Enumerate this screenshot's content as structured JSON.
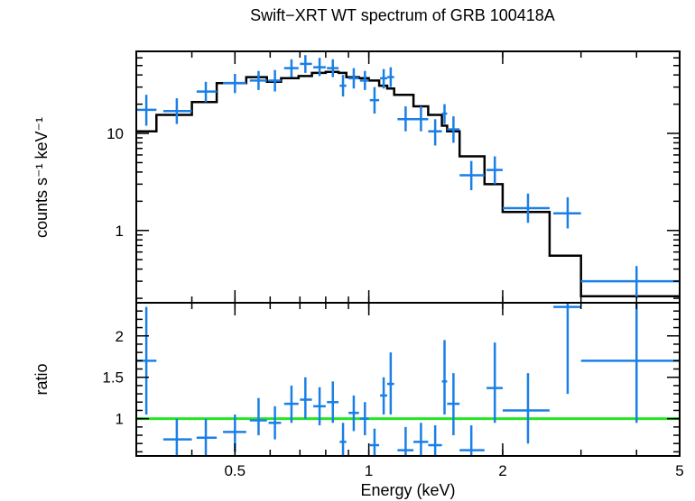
{
  "chart_data": [
    {
      "type": "scatter",
      "panel": "spectrum",
      "title": "Swift−XRT WT spectrum of GRB 100418A",
      "ylabel": "counts s⁻¹ keV⁻¹",
      "xlabel": "Energy (keV)",
      "xscale": "log",
      "yscale": "log",
      "xlim": [
        0.3,
        5
      ],
      "ylim": [
        0.18,
        70
      ],
      "yticks": [
        {
          "value": 1,
          "label": "1"
        },
        {
          "value": 10,
          "label": "10"
        }
      ],
      "series": [
        {
          "name": "data",
          "color": "#1a7fe6",
          "points": [
            {
              "x": 0.316,
              "xlo": 0.3,
              "xhi": 0.333,
              "y": 17.5,
              "ylo": 12.0,
              "yhi": 25.0
            },
            {
              "x": 0.37,
              "xlo": 0.345,
              "xhi": 0.4,
              "y": 17.0,
              "ylo": 12.5,
              "yhi": 23.0
            },
            {
              "x": 0.43,
              "xlo": 0.41,
              "xhi": 0.455,
              "y": 27.0,
              "ylo": 21.0,
              "yhi": 34.0
            },
            {
              "x": 0.5,
              "xlo": 0.47,
              "xhi": 0.53,
              "y": 33.0,
              "ylo": 26.0,
              "yhi": 41.0
            },
            {
              "x": 0.565,
              "xlo": 0.54,
              "xhi": 0.59,
              "y": 35.0,
              "ylo": 28.0,
              "yhi": 44.0
            },
            {
              "x": 0.615,
              "xlo": 0.595,
              "xhi": 0.635,
              "y": 35.0,
              "ylo": 27.0,
              "yhi": 45.0
            },
            {
              "x": 0.67,
              "xlo": 0.645,
              "xhi": 0.695,
              "y": 47.0,
              "ylo": 38.0,
              "yhi": 58.0
            },
            {
              "x": 0.72,
              "xlo": 0.7,
              "xhi": 0.745,
              "y": 52.0,
              "ylo": 42.0,
              "yhi": 64.0
            },
            {
              "x": 0.775,
              "xlo": 0.75,
              "xhi": 0.8,
              "y": 48.0,
              "ylo": 39.0,
              "yhi": 60.0
            },
            {
              "x": 0.83,
              "xlo": 0.805,
              "xhi": 0.855,
              "y": 47.0,
              "ylo": 38.0,
              "yhi": 58.0
            },
            {
              "x": 0.875,
              "xlo": 0.86,
              "xhi": 0.89,
              "y": 31.0,
              "ylo": 24.0,
              "yhi": 40.0
            },
            {
              "x": 0.925,
              "xlo": 0.9,
              "xhi": 0.95,
              "y": 37.0,
              "ylo": 29.0,
              "yhi": 47.0
            },
            {
              "x": 0.98,
              "xlo": 0.955,
              "xhi": 1.0,
              "y": 35.0,
              "ylo": 28.0,
              "yhi": 44.0
            },
            {
              "x": 1.03,
              "xlo": 1.005,
              "xhi": 1.055,
              "y": 22.0,
              "ylo": 16.0,
              "yhi": 30.0
            },
            {
              "x": 1.08,
              "xlo": 1.06,
              "xhi": 1.1,
              "y": 37.0,
              "ylo": 29.0,
              "yhi": 46.0
            },
            {
              "x": 1.12,
              "xlo": 1.1,
              "xhi": 1.14,
              "y": 38.0,
              "ylo": 30.0,
              "yhi": 48.0
            },
            {
              "x": 1.21,
              "xlo": 1.16,
              "xhi": 1.26,
              "y": 14.0,
              "ylo": 10.5,
              "yhi": 19.0
            },
            {
              "x": 1.31,
              "xlo": 1.26,
              "xhi": 1.36,
              "y": 14.0,
              "ylo": 10.5,
              "yhi": 19.0
            },
            {
              "x": 1.41,
              "xlo": 1.36,
              "xhi": 1.46,
              "y": 10.5,
              "ylo": 7.5,
              "yhi": 14.0
            },
            {
              "x": 1.48,
              "xlo": 1.46,
              "xhi": 1.5,
              "y": 16.0,
              "ylo": 12.5,
              "yhi": 20.0
            },
            {
              "x": 1.55,
              "xlo": 1.5,
              "xhi": 1.6,
              "y": 11.0,
              "ylo": 8.0,
              "yhi": 15.0
            },
            {
              "x": 1.7,
              "xlo": 1.6,
              "xhi": 1.82,
              "y": 3.7,
              "ylo": 2.6,
              "yhi": 5.2
            },
            {
              "x": 1.92,
              "xlo": 1.84,
              "xhi": 2.0,
              "y": 4.2,
              "ylo": 3.0,
              "yhi": 5.8
            },
            {
              "x": 2.28,
              "xlo": 2.0,
              "xhi": 2.55,
              "y": 1.7,
              "ylo": 1.2,
              "yhi": 2.4
            },
            {
              "x": 2.8,
              "xlo": 2.6,
              "xhi": 3.0,
              "y": 1.5,
              "ylo": 1.05,
              "yhi": 2.2
            },
            {
              "x": 4.0,
              "xlo": 3.0,
              "xhi": 5.0,
              "y": 0.3,
              "ylo": 0.2,
              "yhi": 0.43
            }
          ]
        },
        {
          "name": "model",
          "color": "#000000",
          "step_edges": [
            0.3,
            0.333,
            0.4,
            0.455,
            0.53,
            0.59,
            0.635,
            0.695,
            0.745,
            0.8,
            0.855,
            0.89,
            0.95,
            1.0,
            1.055,
            1.1,
            1.14,
            1.26,
            1.36,
            1.46,
            1.5,
            1.6,
            1.82,
            2.0,
            2.55,
            3.0,
            5.0
          ],
          "step_values": [
            10.5,
            15.5,
            21.0,
            33.0,
            38.0,
            34.0,
            37.0,
            39.0,
            42.0,
            43.0,
            42.0,
            38.0,
            37.0,
            35.0,
            31.0,
            29.0,
            25.0,
            19.0,
            15.5,
            12.0,
            10.5,
            5.8,
            3.0,
            1.55,
            0.55,
            0.21
          ]
        }
      ]
    },
    {
      "type": "scatter",
      "panel": "ratio",
      "ylabel": "ratio",
      "xlabel": "Energy (keV)",
      "xscale": "log",
      "xlim": [
        0.3,
        5
      ],
      "ylim": [
        0.55,
        2.4
      ],
      "xticks": [
        {
          "value": 0.5,
          "label": "0.5"
        },
        {
          "value": 1,
          "label": "1"
        },
        {
          "value": 2,
          "label": "2"
        },
        {
          "value": 5,
          "label": "5"
        }
      ],
      "yticks": [
        {
          "value": 1,
          "label": "1"
        },
        {
          "value": 1.5,
          "label": "1.5"
        },
        {
          "value": 2,
          "label": "2"
        }
      ],
      "reference_line": {
        "y": 1,
        "color": "#22e622"
      },
      "series": [
        {
          "name": "ratio",
          "color": "#1a7fe6",
          "points": [
            {
              "x": 0.316,
              "xlo": 0.3,
              "xhi": 0.333,
              "y": 1.7,
              "ylo": 1.05,
              "yhi": 2.35
            },
            {
              "x": 0.37,
              "xlo": 0.345,
              "xhi": 0.4,
              "y": 0.75,
              "ylo": 0.55,
              "yhi": 1.0
            },
            {
              "x": 0.43,
              "xlo": 0.41,
              "xhi": 0.455,
              "y": 0.77,
              "ylo": 0.55,
              "yhi": 1.0
            },
            {
              "x": 0.5,
              "xlo": 0.47,
              "xhi": 0.53,
              "y": 0.84,
              "ylo": 0.6,
              "yhi": 1.05
            },
            {
              "x": 0.565,
              "xlo": 0.54,
              "xhi": 0.59,
              "y": 0.98,
              "ylo": 0.8,
              "yhi": 1.25
            },
            {
              "x": 0.615,
              "xlo": 0.595,
              "xhi": 0.635,
              "y": 0.95,
              "ylo": 0.75,
              "yhi": 1.15
            },
            {
              "x": 0.67,
              "xlo": 0.645,
              "xhi": 0.695,
              "y": 1.18,
              "ylo": 0.95,
              "yhi": 1.4
            },
            {
              "x": 0.72,
              "xlo": 0.7,
              "xhi": 0.745,
              "y": 1.23,
              "ylo": 1.0,
              "yhi": 1.5
            },
            {
              "x": 0.775,
              "xlo": 0.75,
              "xhi": 0.8,
              "y": 1.15,
              "ylo": 0.92,
              "yhi": 1.38
            },
            {
              "x": 0.83,
              "xlo": 0.805,
              "xhi": 0.855,
              "y": 1.2,
              "ylo": 0.95,
              "yhi": 1.45
            },
            {
              "x": 0.875,
              "xlo": 0.86,
              "xhi": 0.89,
              "y": 0.72,
              "ylo": 0.55,
              "yhi": 0.95
            },
            {
              "x": 0.925,
              "xlo": 0.9,
              "xhi": 0.95,
              "y": 1.07,
              "ylo": 0.85,
              "yhi": 1.28
            },
            {
              "x": 0.98,
              "xlo": 0.955,
              "xhi": 1.0,
              "y": 1.0,
              "ylo": 0.8,
              "yhi": 1.2
            },
            {
              "x": 1.03,
              "xlo": 1.005,
              "xhi": 1.055,
              "y": 0.68,
              "ylo": 0.55,
              "yhi": 0.88
            },
            {
              "x": 1.08,
              "xlo": 1.06,
              "xhi": 1.1,
              "y": 1.28,
              "ylo": 1.05,
              "yhi": 1.5
            },
            {
              "x": 1.12,
              "xlo": 1.1,
              "xhi": 1.14,
              "y": 1.42,
              "ylo": 1.05,
              "yhi": 1.8
            },
            {
              "x": 1.21,
              "xlo": 1.16,
              "xhi": 1.26,
              "y": 0.62,
              "ylo": 0.55,
              "yhi": 0.9
            },
            {
              "x": 1.31,
              "xlo": 1.26,
              "xhi": 1.36,
              "y": 0.72,
              "ylo": 0.55,
              "yhi": 0.95
            },
            {
              "x": 1.41,
              "xlo": 1.36,
              "xhi": 1.46,
              "y": 0.68,
              "ylo": 0.55,
              "yhi": 0.92
            },
            {
              "x": 1.48,
              "xlo": 1.46,
              "xhi": 1.5,
              "y": 1.45,
              "ylo": 1.05,
              "yhi": 1.95
            },
            {
              "x": 1.55,
              "xlo": 1.5,
              "xhi": 1.6,
              "y": 1.18,
              "ylo": 0.8,
              "yhi": 1.55
            },
            {
              "x": 1.7,
              "xlo": 1.6,
              "xhi": 1.82,
              "y": 0.62,
              "ylo": 0.55,
              "yhi": 0.92
            },
            {
              "x": 1.92,
              "xlo": 1.84,
              "xhi": 2.0,
              "y": 1.37,
              "ylo": 0.95,
              "yhi": 1.92
            },
            {
              "x": 2.28,
              "xlo": 2.0,
              "xhi": 2.55,
              "y": 1.1,
              "ylo": 0.7,
              "yhi": 1.55
            },
            {
              "x": 2.8,
              "xlo": 2.6,
              "xhi": 3.0,
              "y": 2.35,
              "ylo": 1.3,
              "yhi": 2.4
            },
            {
              "x": 4.0,
              "xlo": 3.0,
              "xhi": 5.0,
              "y": 1.7,
              "ylo": 0.95,
              "yhi": 2.4
            }
          ]
        }
      ]
    }
  ]
}
